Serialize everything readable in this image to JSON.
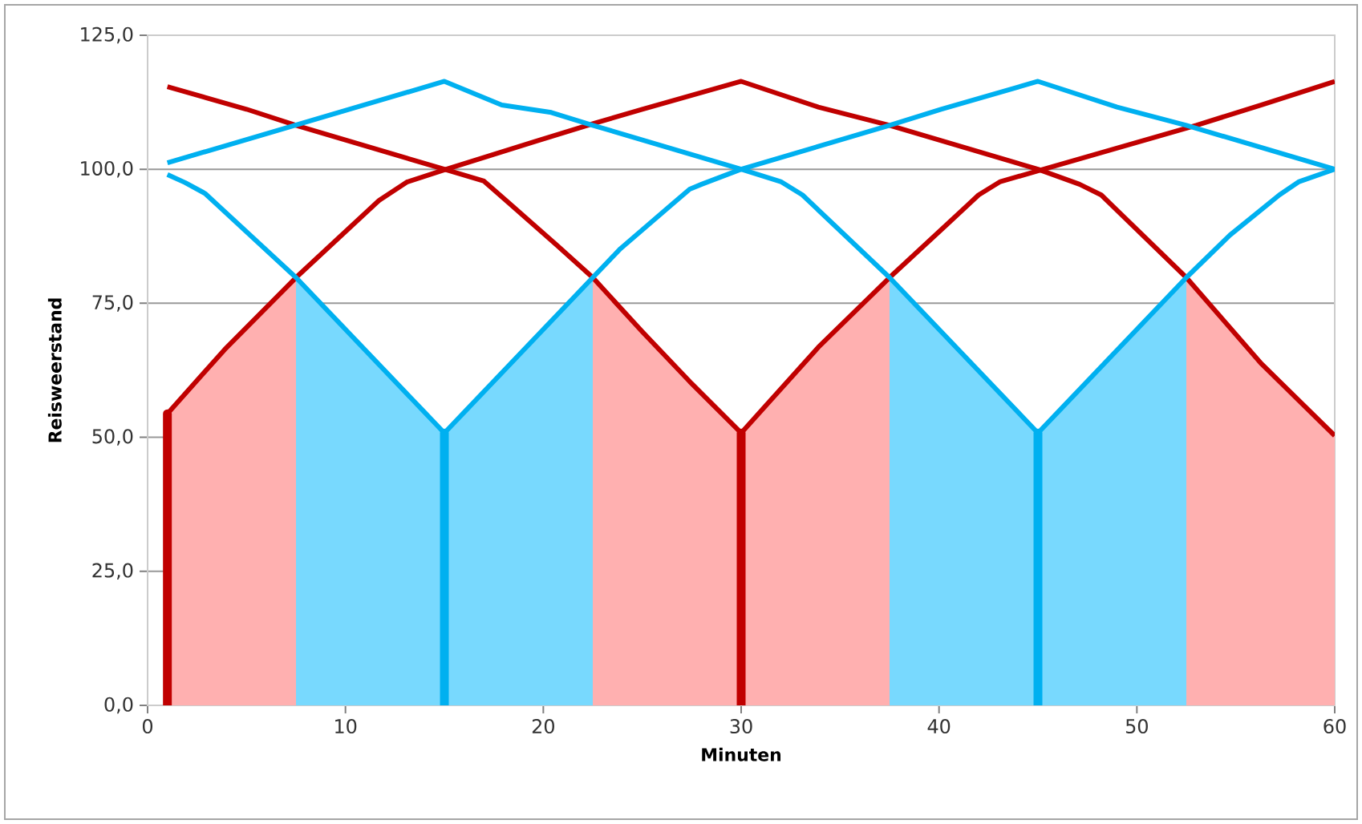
{
  "chart_data": {
    "type": "line",
    "xlabel": "Minuten",
    "ylabel": "Reisweerstand",
    "xlim": [
      0,
      60
    ],
    "xticks": [
      0,
      10,
      20,
      30,
      40,
      50,
      60
    ],
    "ylim": [
      0,
      125
    ],
    "yticks": [
      {
        "value": 0,
        "label": "0,0"
      },
      {
        "value": 25,
        "label": "25,0"
      },
      {
        "value": 50,
        "label": "50,0"
      },
      {
        "value": 75,
        "label": "75,0"
      },
      {
        "value": 100,
        "label": "100,0"
      },
      {
        "value": 125,
        "label": "125,0"
      }
    ],
    "grid": "y",
    "series": [
      {
        "type": "area",
        "color": "#ffb0b0",
        "x": [
          1,
          3.9,
          7.5
        ],
        "values": [
          54.4,
          66.4,
          79.8
        ]
      },
      {
        "type": "area",
        "color": "#78d9fe",
        "x": [
          7.5,
          15,
          22.5
        ],
        "values": [
          79.8,
          50.8,
          79.8
        ]
      },
      {
        "type": "area",
        "color": "#ffb0b0",
        "x": [
          22.5,
          25,
          27.4,
          30,
          33.9,
          37.5
        ],
        "values": [
          79.8,
          69.7,
          60.4,
          50.8,
          66.8,
          79.8
        ]
      },
      {
        "type": "area",
        "color": "#78d9fe",
        "x": [
          37.5,
          45,
          52.5
        ],
        "values": [
          79.8,
          50.8,
          79.8
        ]
      },
      {
        "type": "area",
        "color": "#ffb0b0",
        "x": [
          52.5,
          56.3,
          60
        ],
        "values": [
          79.8,
          63.7,
          50.3
        ]
      },
      {
        "color": "#c00000",
        "x": [
          1,
          5,
          7.5,
          15,
          17,
          20.7,
          22.5,
          25,
          27.4,
          30,
          33.9,
          37.5,
          40.4,
          42,
          43.1,
          45,
          53,
          56.3,
          60
        ],
        "values": [
          115.4,
          111.2,
          108.2,
          100,
          97.8,
          85.8,
          79.8,
          69.7,
          60.4,
          50.8,
          66.8,
          79.8,
          89.7,
          95.2,
          97.7,
          99.7,
          108.2,
          112,
          116.4
        ]
      },
      {
        "color": "#c00000",
        "x": [
          1,
          3.9,
          7.5,
          9.8,
          11.7,
          13.1,
          15,
          19.6,
          22.5,
          25,
          30,
          33.9,
          37.5,
          45,
          47.1,
          48.2,
          52.5,
          56.3,
          60
        ],
        "values": [
          54.4,
          66.4,
          79.8,
          87.7,
          94.2,
          97.6,
          99.9,
          105.2,
          108.5,
          111.2,
          116.4,
          111.6,
          108.2,
          100,
          97.2,
          95.2,
          79.8,
          63.7,
          50.3
        ]
      },
      {
        "color": "#00b0f0",
        "x": [
          1,
          15,
          17.9,
          20.4,
          22.5,
          30,
          32,
          33.1,
          37.5,
          45,
          52.5,
          54.7,
          57.2,
          58.2,
          60
        ],
        "values": [
          101.2,
          116.4,
          112,
          110.6,
          108.2,
          100,
          97.7,
          95.2,
          79.8,
          50.8,
          79.8,
          87.7,
          95.2,
          97.7,
          100
        ]
      },
      {
        "color": "#00b0f0",
        "x": [
          1,
          1.9,
          2.9,
          7.5,
          15,
          22.5,
          23.9,
          27.4,
          28,
          30,
          37.5,
          40.1,
          45,
          49,
          52.5,
          60
        ],
        "values": [
          99,
          97.5,
          95.5,
          79.8,
          50.8,
          79.8,
          85.2,
          96.3,
          97.2,
          100,
          108.2,
          111.2,
          116.4,
          111.6,
          108.2,
          100
        ]
      },
      {
        "color": "#c00000",
        "x": [
          1,
          1
        ],
        "values": [
          0,
          54.4
        ]
      },
      {
        "color": "#00b0f0",
        "x": [
          15,
          15
        ],
        "values": [
          0,
          50.8
        ]
      },
      {
        "color": "#c00000",
        "x": [
          30,
          30
        ],
        "values": [
          0,
          50.8
        ]
      },
      {
        "color": "#00b0f0",
        "x": [
          45,
          45
        ],
        "values": [
          0,
          50.8
        ]
      }
    ]
  }
}
